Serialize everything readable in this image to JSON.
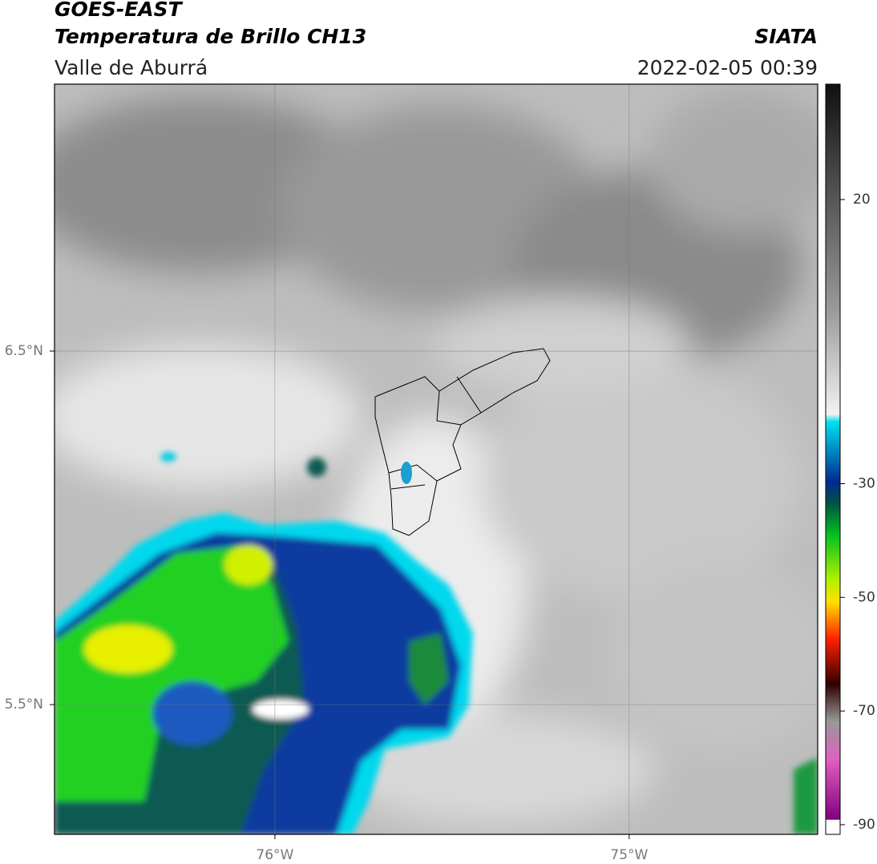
{
  "header": {
    "title": "GOES-EAST",
    "subtitle": "Temperatura de Brillo CH13",
    "region": "Valle de Aburrá",
    "source": "SIATA",
    "timestamp": "2022-02-05 00:39"
  },
  "map": {
    "lon_lim": [
      -76.622,
      -74.468
    ],
    "lat_lim": [
      5.133,
      7.255
    ],
    "lon_ticks": [
      {
        "value": -76,
        "label": "76°W"
      },
      {
        "value": -75,
        "label": "75°W"
      }
    ],
    "lat_ticks": [
      {
        "value": 6.5,
        "label": "6.5°N"
      },
      {
        "value": 5.5,
        "label": "5.5°N"
      }
    ]
  },
  "colorbar": {
    "lim": [
      -91.7,
      40.3
    ],
    "ticks": [
      20,
      -30,
      -50,
      -70,
      -90
    ]
  }
}
